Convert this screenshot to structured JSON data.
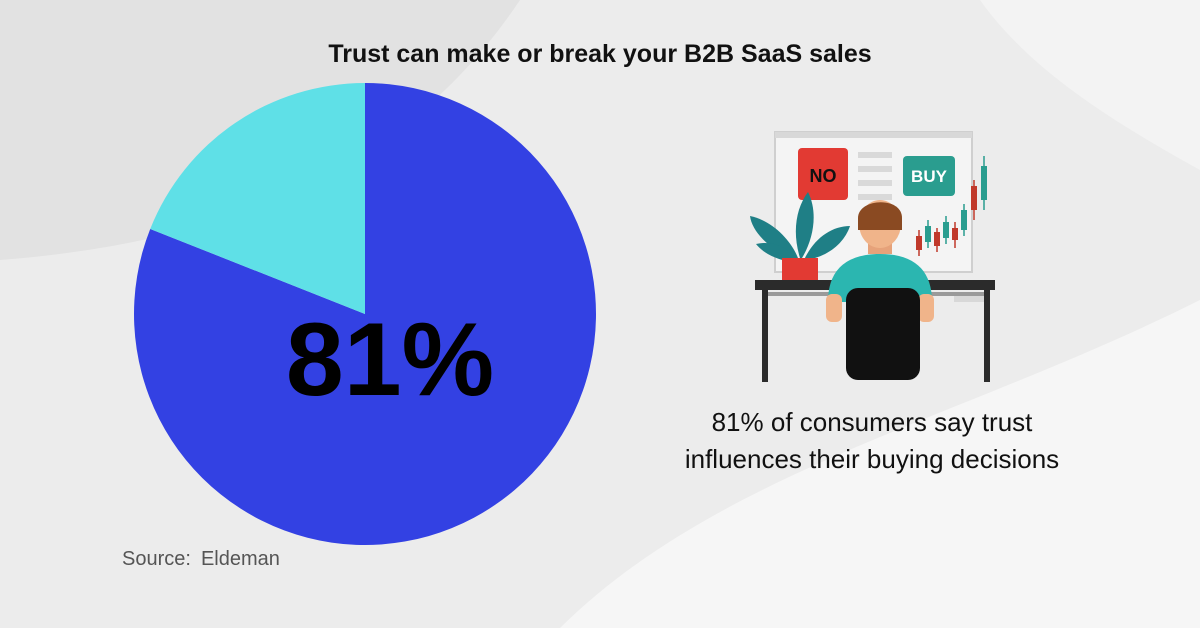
{
  "chart_data": {
    "type": "pie",
    "title": "Trust can make or break your B2B SaaS sales",
    "slices": [
      {
        "label": "81%",
        "value": 81,
        "color": "#3341e3"
      },
      {
        "label": "",
        "value": 19,
        "color": "#5fe0e7"
      }
    ],
    "start_angle_deg": 0,
    "direction": "clockwise"
  },
  "source": {
    "label": "Source:",
    "name": "Eldeman"
  },
  "caption": "81% of consumers say trust influences their buying decisions",
  "illustration": {
    "no_sign": "NO",
    "buy_sign": "BUY",
    "colors": {
      "no": "#e23a33",
      "buy": "#2a9d8f",
      "shirt": "#2bb6b0",
      "hair": "#8a4a22",
      "chair": "#111111",
      "plant": "#1f7f86",
      "pot": "#e23a33",
      "desk": "#2b2b2b"
    }
  }
}
